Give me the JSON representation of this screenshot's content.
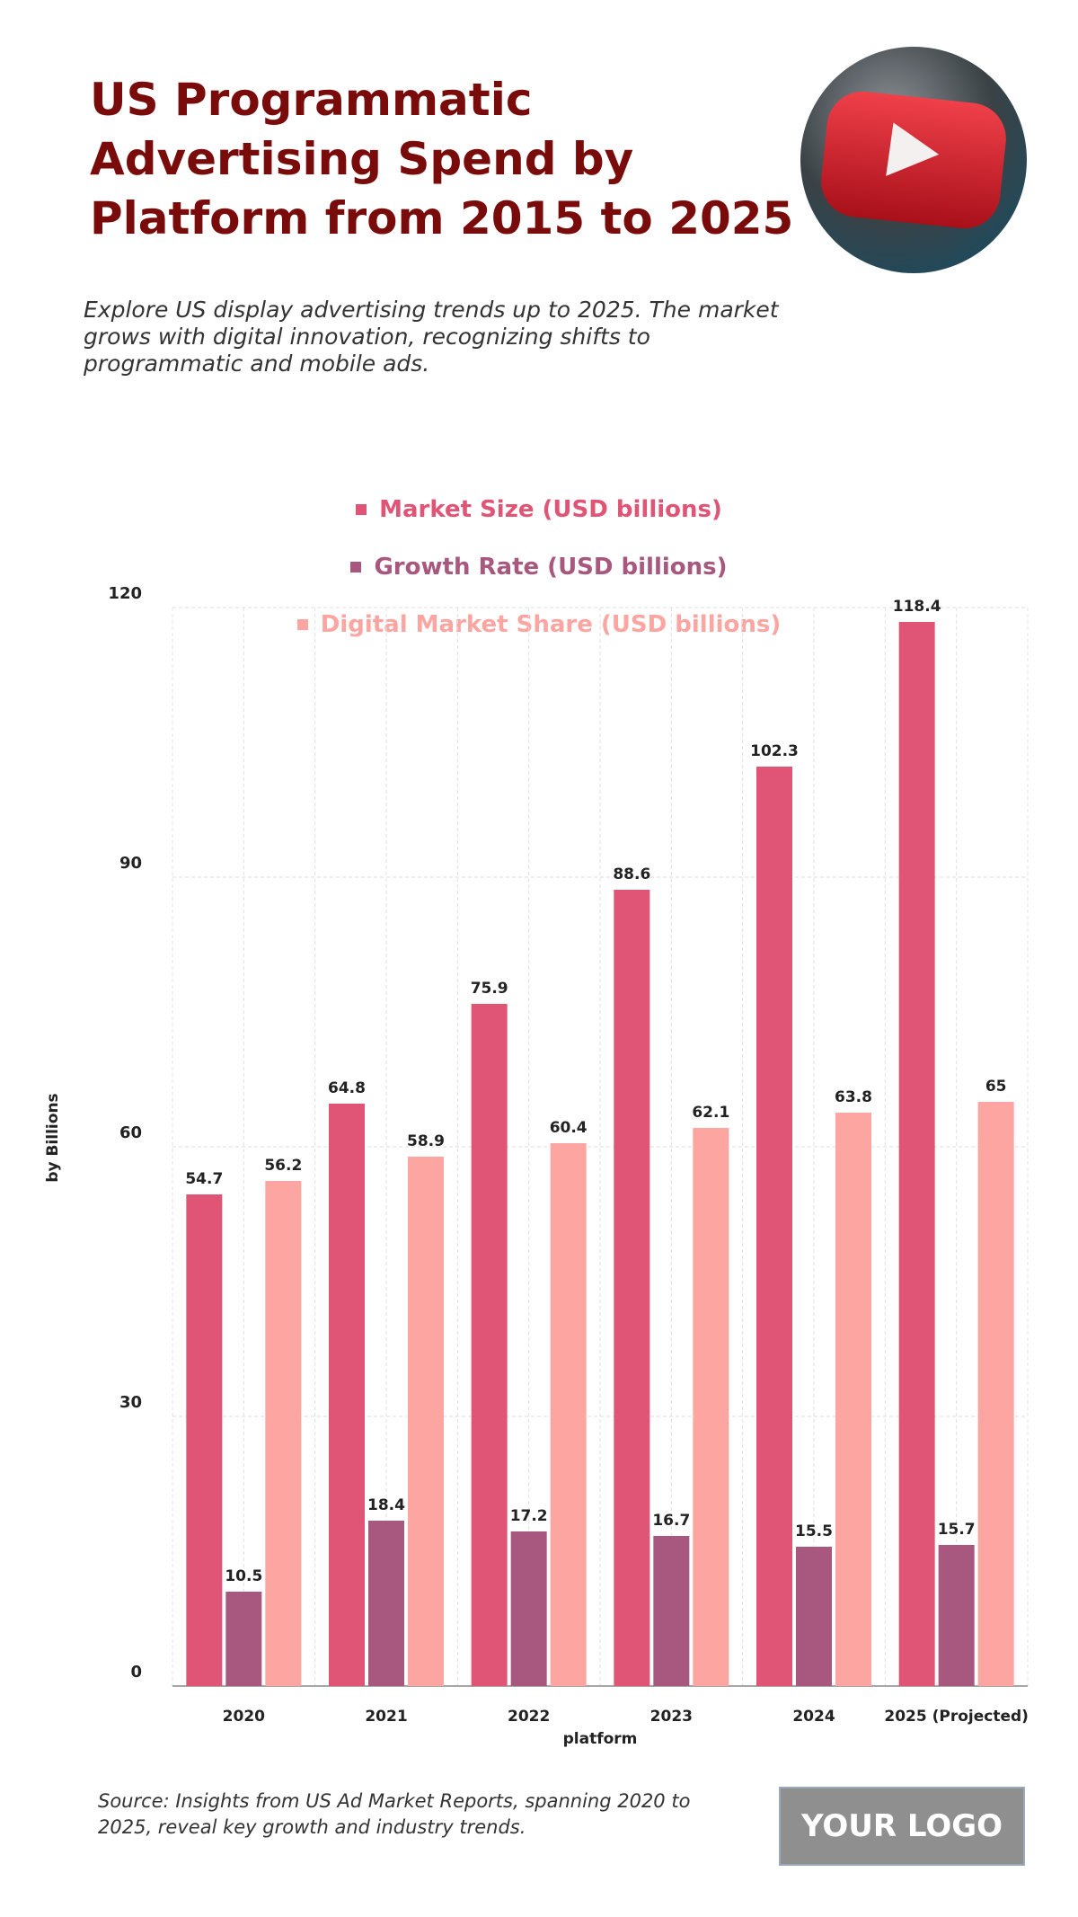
{
  "chart_data": {
    "type": "bar",
    "title": "US Programmatic Advertising Spend by Platform from 2015 to 2025",
    "subtitle": "Explore US display advertising trends up to 2025. The market grows with digital innovation, recognizing shifts to programmatic and mobile ads.",
    "source": "Source: Insights from US Ad Market Reports, spanning 2020 to 2025, reveal key growth and industry trends.",
    "logo": "YOUR LOGO",
    "x_label": "platform",
    "y_label": "by Billions",
    "categories": [
      "2020",
      "2021",
      "2022",
      "2023",
      "2024",
      "2025 (Projected)"
    ],
    "series": [
      {
        "name": "Market Size (USD billions)",
        "color": "#e05576",
        "values": [
          54.7,
          64.8,
          75.9,
          88.6,
          102.3,
          118.4
        ]
      },
      {
        "name": "Growth Rate (USD billions)",
        "color": "#a8577e",
        "values": [
          10.5,
          18.4,
          17.2,
          16.7,
          15.5,
          15.7
        ]
      },
      {
        "name": "Digital Market Share (USD billions)",
        "color": "#fca5a1",
        "values": [
          56.2,
          58.9,
          60.4,
          62.1,
          63.8,
          65
        ]
      }
    ],
    "ylim": [
      0,
      120
    ],
    "yticks": [
      0,
      30,
      60,
      90,
      120
    ],
    "grid": true
  }
}
